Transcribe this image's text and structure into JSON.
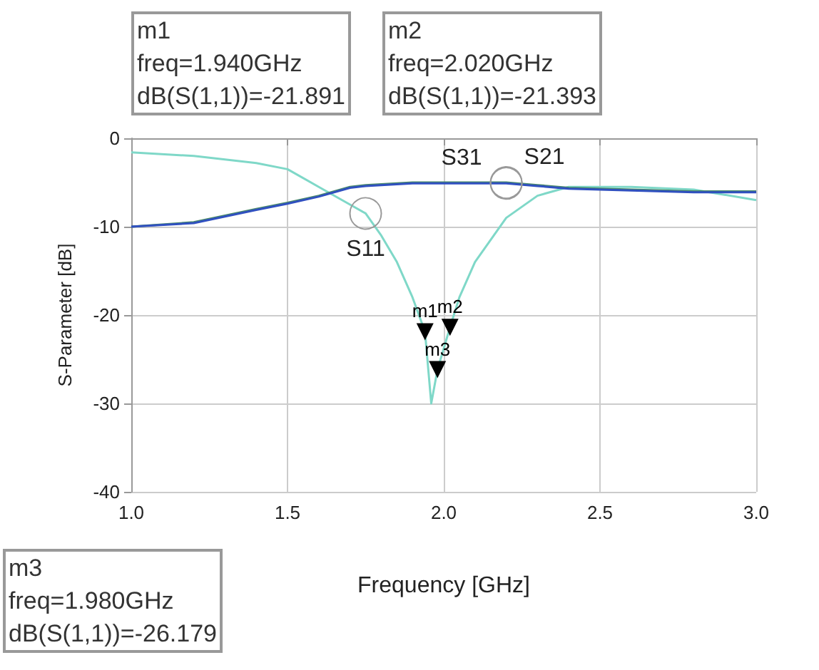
{
  "chart_data": {
    "type": "line",
    "xlabel": "Frequency [GHz]",
    "ylabel": "S-Parameter [dB]",
    "x": [
      1.0,
      1.2,
      1.4,
      1.5,
      1.6,
      1.7,
      1.75,
      1.8,
      1.85,
      1.9,
      1.94,
      1.96,
      1.98,
      2.02,
      2.05,
      2.1,
      2.2,
      2.3,
      2.4,
      2.6,
      2.8,
      3.0
    ],
    "series": [
      {
        "name": "S11",
        "color": "#7fd8c8",
        "values": [
          -1.6,
          -2,
          -2.8,
          -3.5,
          -5.5,
          -7.5,
          -8.5,
          -11,
          -14,
          -18,
          -21.891,
          -30,
          -26.179,
          -21.393,
          -18,
          -14,
          -9,
          -6.5,
          -5.5,
          -5.5,
          -5.8,
          -7
        ]
      },
      {
        "name": "S21",
        "color": "#4a8a6a",
        "values": [
          -10,
          -9.5,
          -8,
          -7.3,
          -6.5,
          -5.5,
          -5.3,
          -5.2,
          -5.1,
          -5,
          -5,
          -5,
          -5,
          -5,
          -5,
          -5,
          -5,
          -5.3,
          -5.6,
          -5.8,
          -6,
          -6
        ]
      },
      {
        "name": "S31",
        "color": "#3050c0",
        "values": [
          -10,
          -9.6,
          -8.1,
          -7.4,
          -6.6,
          -5.6,
          -5.4,
          -5.3,
          -5.2,
          -5.1,
          -5.1,
          -5.1,
          -5.1,
          -5.1,
          -5.1,
          -5.1,
          -5.1,
          -5.4,
          -5.7,
          -5.9,
          -6.1,
          -6.1
        ]
      }
    ],
    "annotations": [
      "m1\nfreq=1.940GHz\ndB(S(1,1))=-21.891",
      "m2\nfreq=2.020GHz\ndB(S(1,1))=-21.393",
      "m3\nfreq=1.980GHz\ndB(S(1,1))=-26.179",
      {
        "text": "m1",
        "x": 1.94,
        "y": -21.891
      },
      {
        "text": "m2",
        "x": 2.02,
        "y": -21.393
      },
      {
        "text": "m3",
        "x": 1.98,
        "y": -26.179
      }
    ],
    "xlim": [
      1.0,
      3.0
    ],
    "ylim": [
      -40,
      0
    ],
    "xticks": [
      {
        "value": 1,
        "label": "1.0"
      },
      {
        "value": 1.5,
        "label": "1.5"
      },
      {
        "value": 2,
        "label": "2.0"
      },
      {
        "value": 2.5,
        "label": "2.5"
      },
      {
        "value": 3,
        "label": "3.0"
      }
    ],
    "yticks": [
      0,
      -10,
      -20,
      -30,
      -40
    ],
    "grid": true,
    "marker": "none",
    "line_style": "solid"
  }
}
